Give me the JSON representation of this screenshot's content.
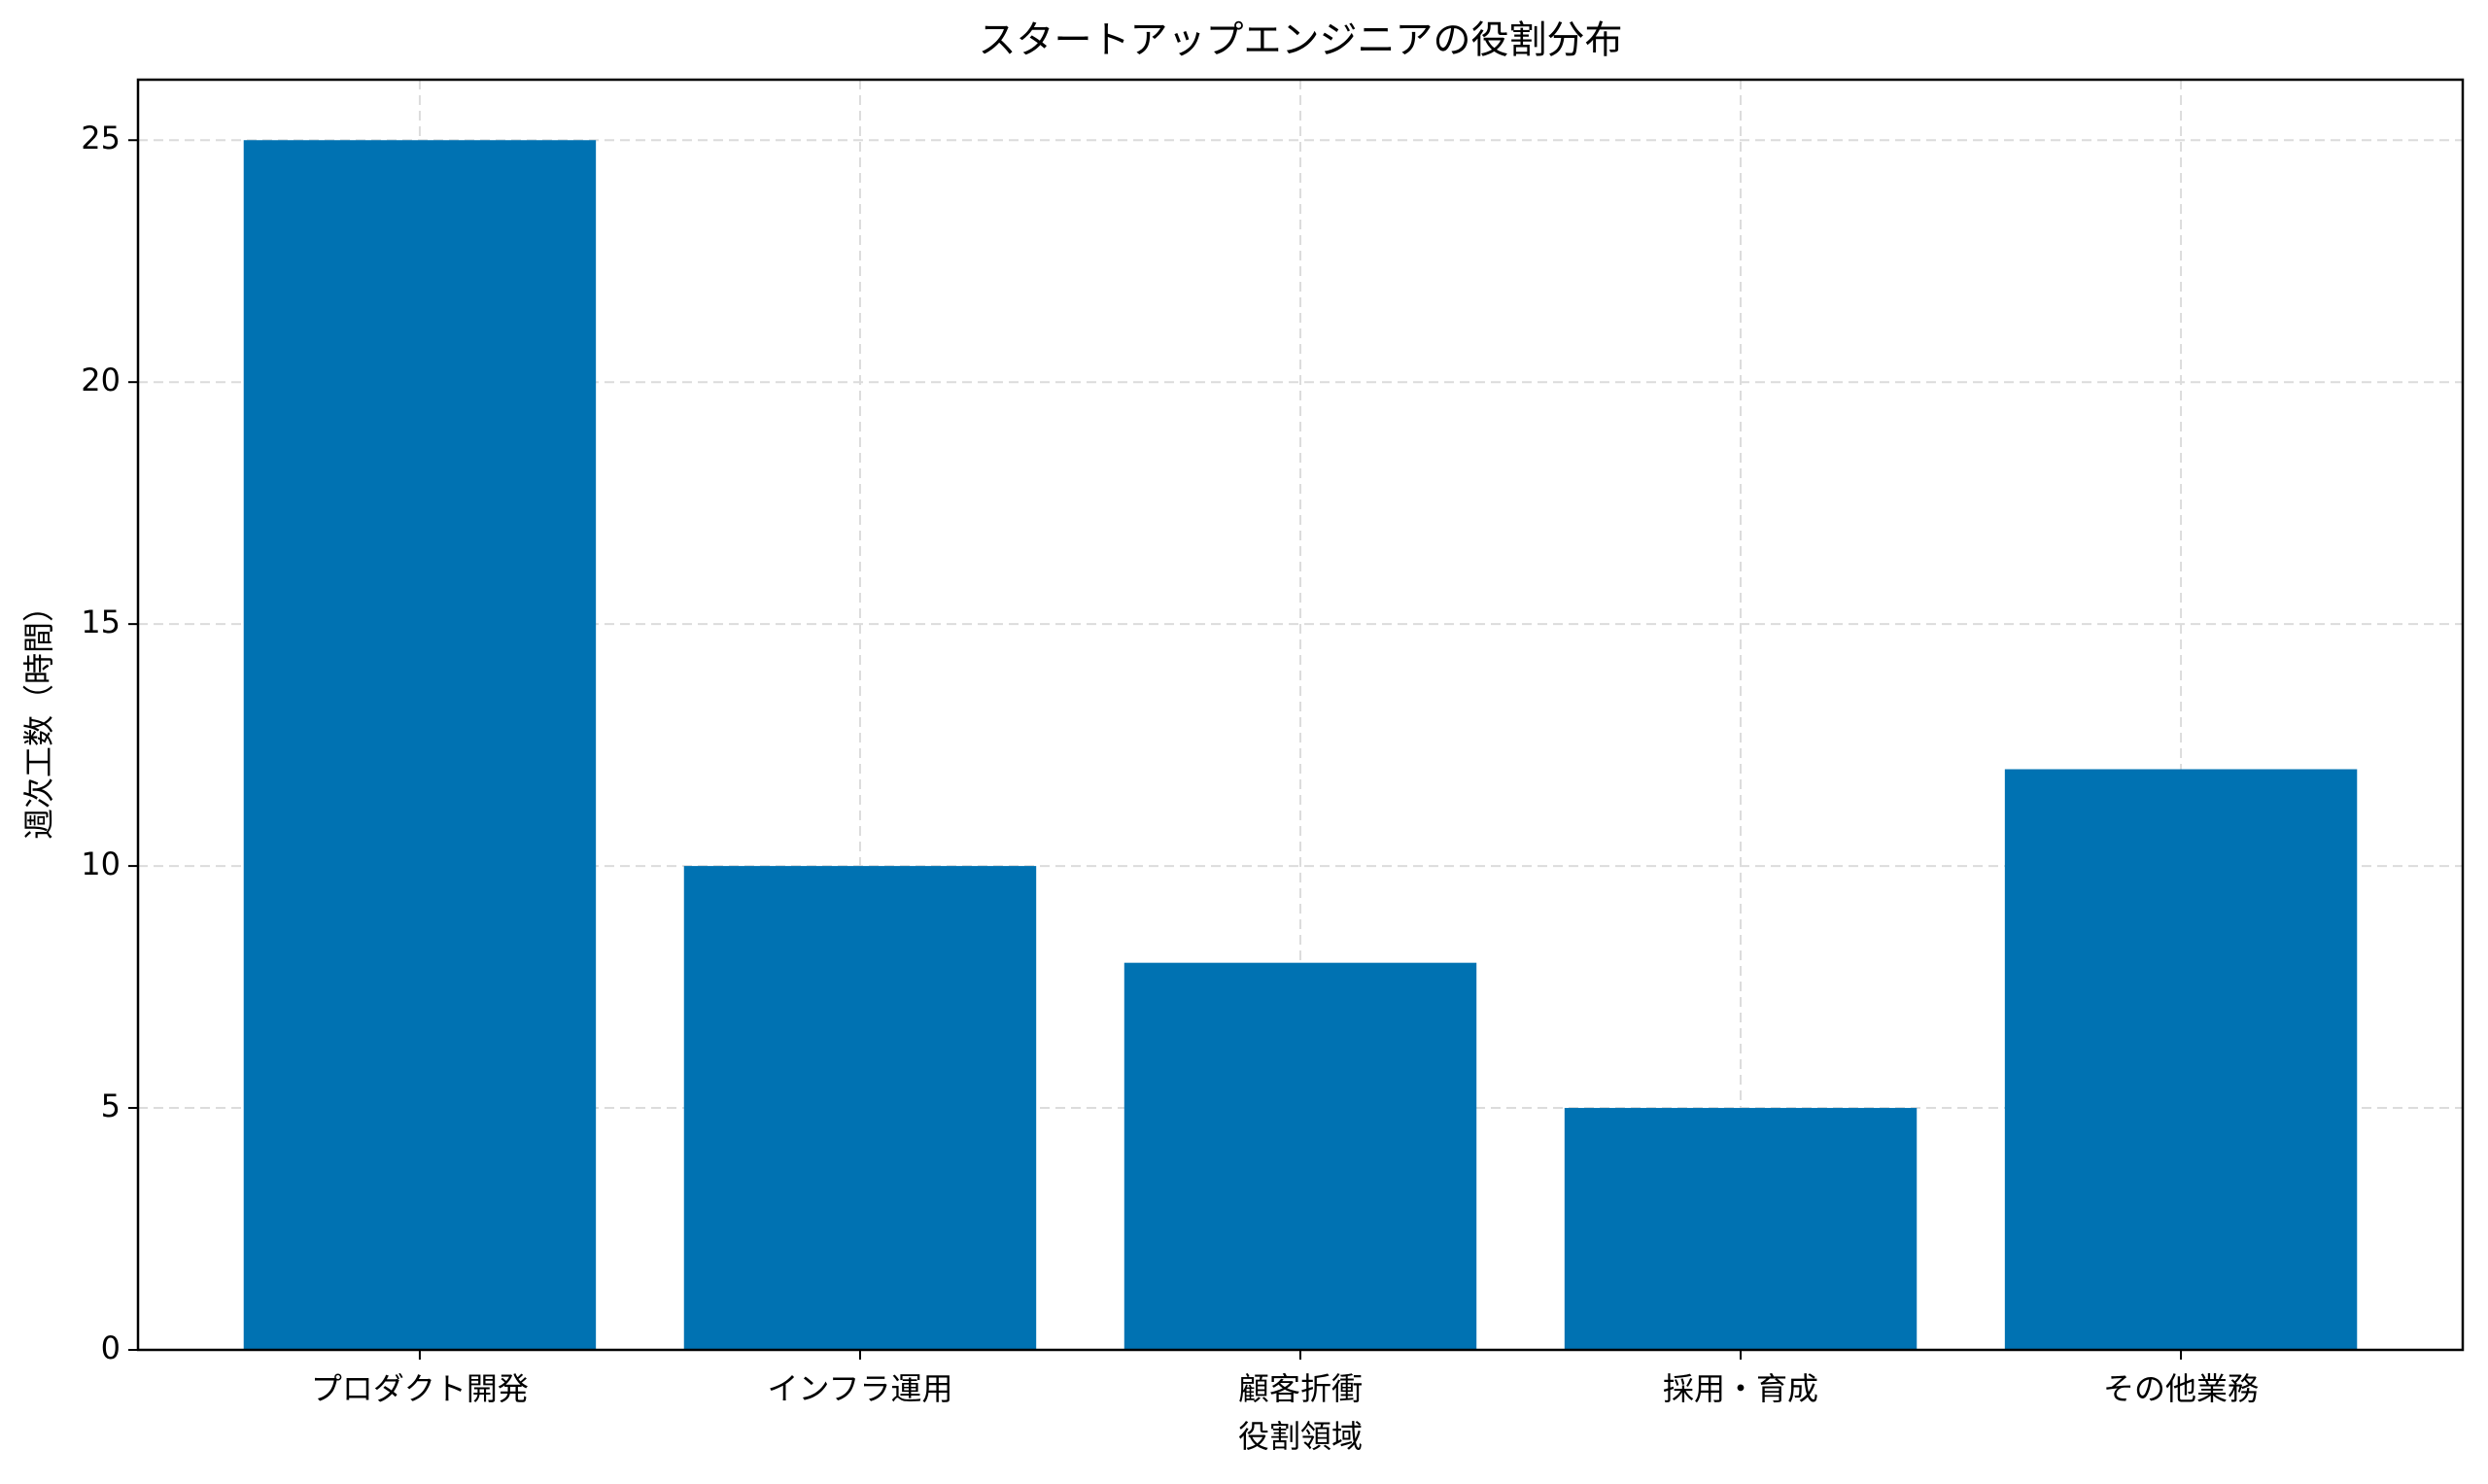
{
  "chart_data": {
    "type": "bar",
    "title": "スタートアップエンジニアの役割分布",
    "x_label": "役割領域",
    "y_label": "週次工数（時間）",
    "categories": [
      "プロダクト開発",
      "インフラ運用",
      "顧客折衝",
      "採用・育成",
      "その他業務"
    ],
    "values": [
      25,
      10,
      8,
      5,
      12
    ],
    "color": "#0072b2",
    "ylim": [
      0,
      26.25
    ],
    "yticks": [
      0,
      5,
      10,
      15,
      20,
      25
    ],
    "grid": true
  }
}
